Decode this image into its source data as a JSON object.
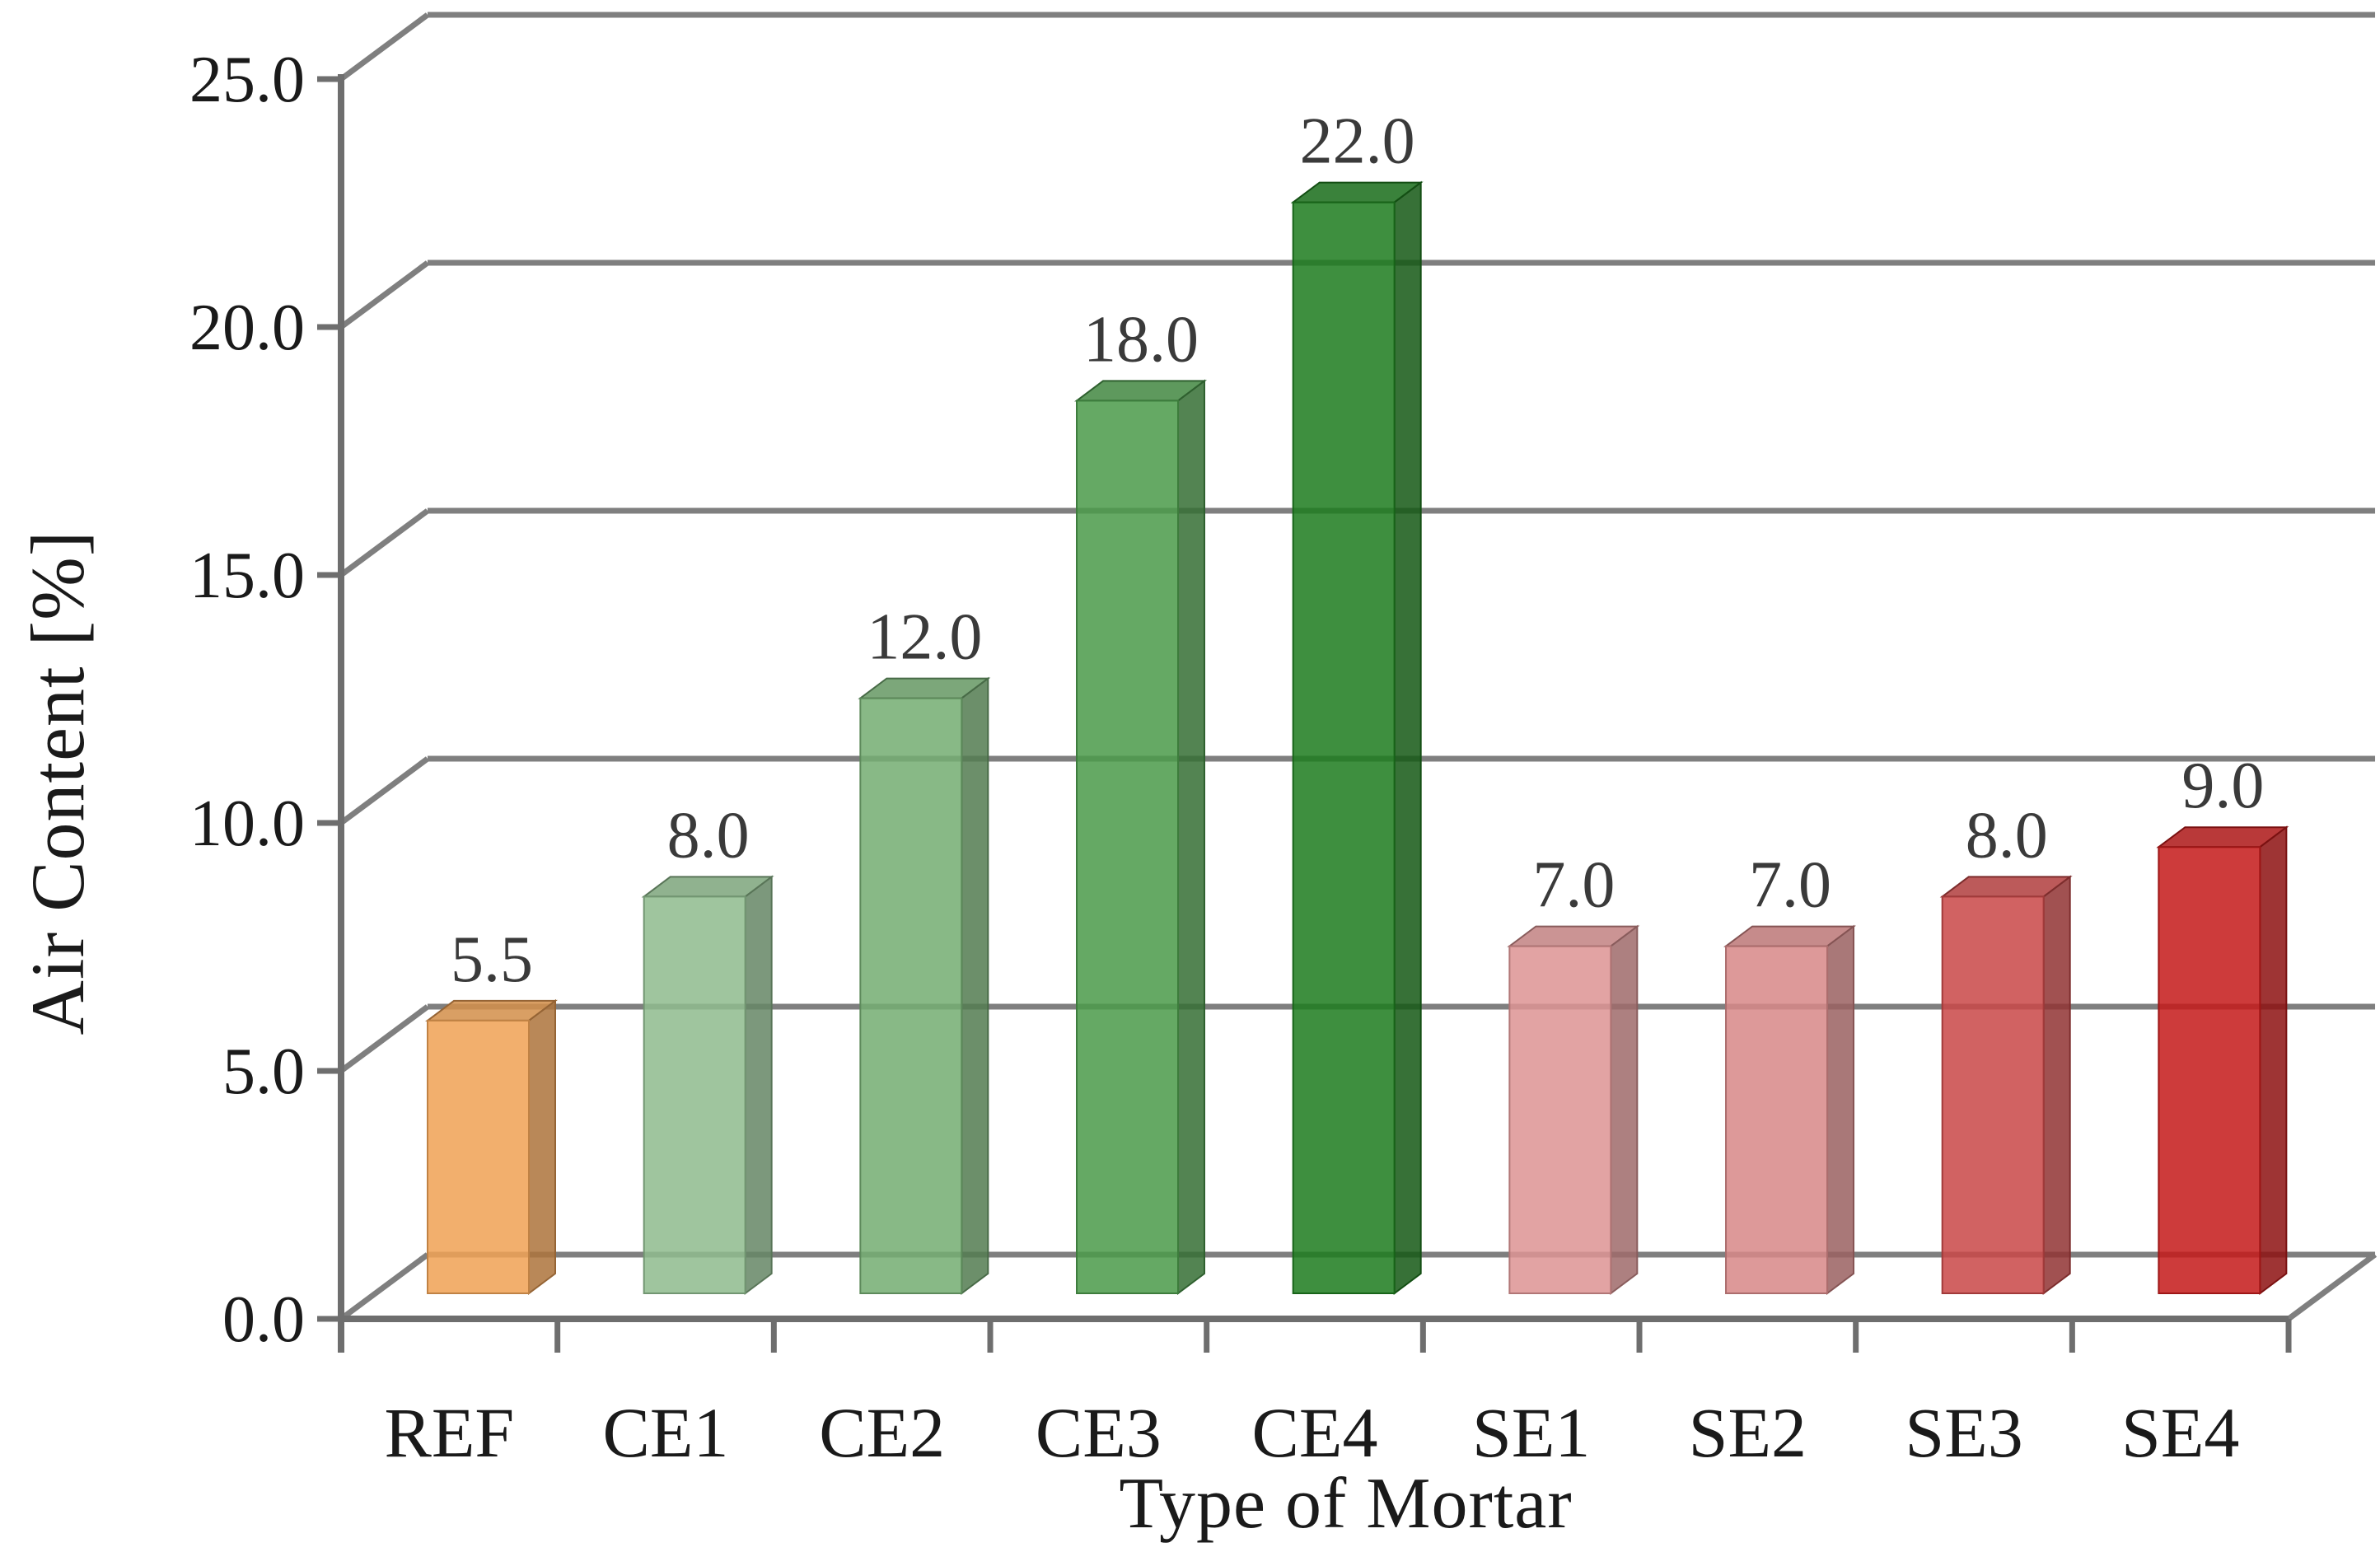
{
  "chart_data": {
    "type": "bar",
    "style": "3d-column",
    "title": "",
    "xlabel": "Type of Mortar",
    "ylabel": "Air Content [%]",
    "categories": [
      "REF",
      "CE1",
      "CE2",
      "CE3",
      "CE4",
      "SE1",
      "SE2",
      "SE3",
      "SE4"
    ],
    "values": [
      5.5,
      8.0,
      12.0,
      18.0,
      22.0,
      7.0,
      7.0,
      8.0,
      9.0
    ],
    "data_labels": [
      "5.5",
      "8.0",
      "12.0",
      "18.0",
      "22.0",
      "7.0",
      "7.0",
      "8.0",
      "9.0"
    ],
    "bar_colors": [
      "#F0A255",
      "#8FBC8E",
      "#74AD72",
      "#4C9B4B",
      "#1E7D1F",
      "#DD9494",
      "#D78888",
      "#C94848",
      "#C51B1B"
    ],
    "ylim": [
      0,
      25
    ],
    "ytick_interval": 5,
    "ytick_labels": [
      "0.0",
      "5.0",
      "10.0",
      "15.0",
      "20.0",
      "25.0"
    ],
    "grid": true,
    "legend": false,
    "gridline_color": "#7f7f7f",
    "axis_color": "#6e6e6e",
    "text_color": "#1a1a1a"
  }
}
